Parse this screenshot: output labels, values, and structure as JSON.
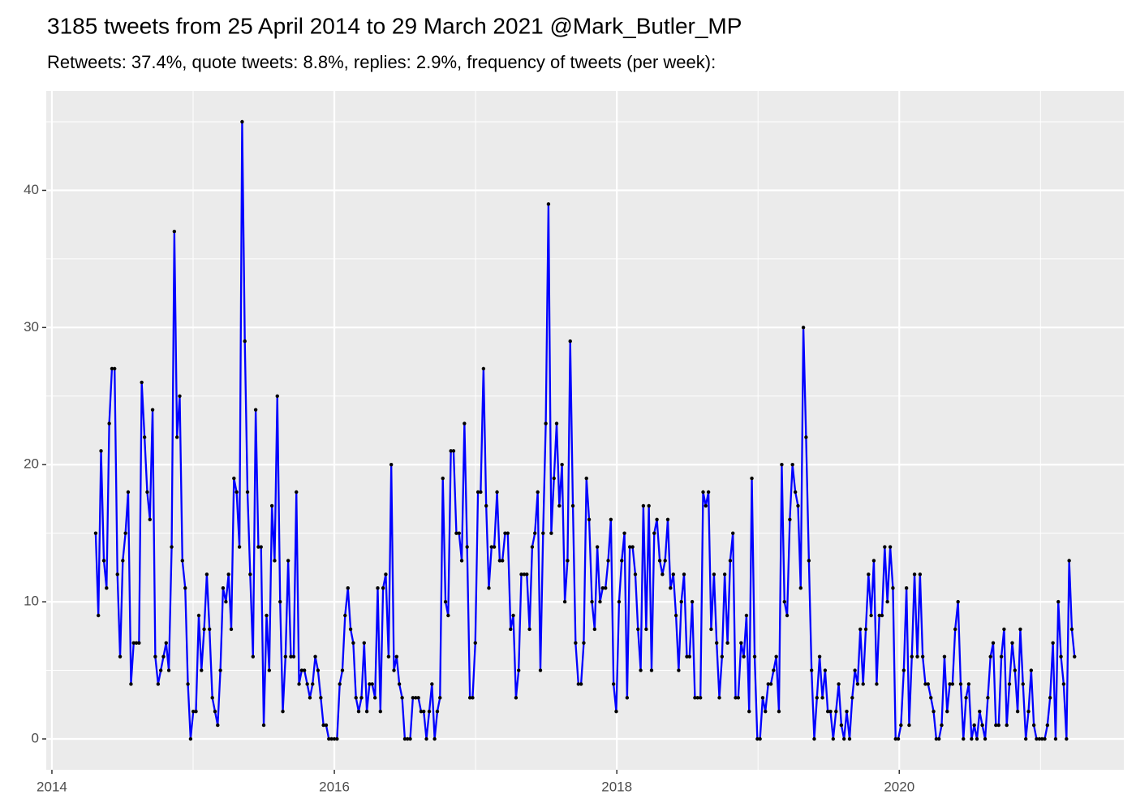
{
  "chart_data": {
    "type": "line",
    "title": "3185 tweets from 25 April 2014 to 29 March 2021 @Mark_Butler_MP",
    "subtitle": "Retweets: 37.4%, quote tweets: 8.8%, replies: 2.9%, frequency of tweets (per week):",
    "color": "#0000ff",
    "point_color": "#000000",
    "background": "#ebebeb",
    "grid": true,
    "minor_grid": true,
    "xlim": [
      2013.96,
      2021.59
    ],
    "xticks": [
      2014,
      2016,
      2018,
      2020
    ],
    "ylim": [
      -2.25,
      47.25
    ],
    "yticks": [
      0,
      10,
      20,
      30,
      40
    ],
    "x": [
      2014.31,
      2014.329,
      2014.348,
      2014.368,
      2014.387,
      2014.406,
      2014.425,
      2014.444,
      2014.464,
      2014.483,
      2014.502,
      2014.521,
      2014.54,
      2014.56,
      2014.579,
      2014.598,
      2014.617,
      2014.636,
      2014.656,
      2014.675,
      2014.694,
      2014.713,
      2014.732,
      2014.752,
      2014.771,
      2014.79,
      2014.809,
      2014.828,
      2014.848,
      2014.867,
      2014.886,
      2014.905,
      2014.924,
      2014.944,
      2014.963,
      2014.982,
      2015.001,
      2015.02,
      2015.04,
      2015.059,
      2015.078,
      2015.097,
      2015.116,
      2015.136,
      2015.155,
      2015.174,
      2015.193,
      2015.212,
      2015.232,
      2015.251,
      2015.27,
      2015.289,
      2015.308,
      2015.328,
      2015.347,
      2015.366,
      2015.385,
      2015.404,
      2015.424,
      2015.443,
      2015.462,
      2015.481,
      2015.5,
      2015.52,
      2015.539,
      2015.558,
      2015.577,
      2015.596,
      2015.616,
      2015.635,
      2015.654,
      2015.673,
      2015.692,
      2015.712,
      2015.731,
      2015.75,
      2015.769,
      2015.788,
      2015.808,
      2015.827,
      2015.846,
      2015.865,
      2015.884,
      2015.904,
      2015.923,
      2015.942,
      2015.961,
      2015.98,
      2016.0,
      2016.019,
      2016.038,
      2016.057,
      2016.076,
      2016.096,
      2016.115,
      2016.134,
      2016.153,
      2016.172,
      2016.192,
      2016.211,
      2016.23,
      2016.249,
      2016.268,
      2016.288,
      2016.307,
      2016.326,
      2016.345,
      2016.364,
      2016.384,
      2016.403,
      2016.422,
      2016.441,
      2016.46,
      2016.48,
      2016.499,
      2016.518,
      2016.537,
      2016.556,
      2016.576,
      2016.595,
      2016.614,
      2016.633,
      2016.652,
      2016.672,
      2016.691,
      2016.71,
      2016.729,
      2016.748,
      2016.768,
      2016.787,
      2016.806,
      2016.825,
      2016.844,
      2016.864,
      2016.883,
      2016.902,
      2016.921,
      2016.94,
      2016.96,
      2016.979,
      2016.998,
      2017.017,
      2017.036,
      2017.056,
      2017.075,
      2017.094,
      2017.113,
      2017.132,
      2017.152,
      2017.171,
      2017.19,
      2017.209,
      2017.228,
      2017.248,
      2017.267,
      2017.286,
      2017.305,
      2017.324,
      2017.344,
      2017.363,
      2017.382,
      2017.401,
      2017.42,
      2017.44,
      2017.459,
      2017.478,
      2017.497,
      2017.516,
      2017.536,
      2017.555,
      2017.574,
      2017.593,
      2017.612,
      2017.632,
      2017.651,
      2017.67,
      2017.689,
      2017.708,
      2017.728,
      2017.747,
      2017.766,
      2017.785,
      2017.804,
      2017.824,
      2017.843,
      2017.862,
      2017.881,
      2017.9,
      2017.92,
      2017.939,
      2017.958,
      2017.977,
      2017.996,
      2018.016,
      2018.035,
      2018.054,
      2018.073,
      2018.092,
      2018.112,
      2018.131,
      2018.15,
      2018.169,
      2018.188,
      2018.208,
      2018.227,
      2018.246,
      2018.265,
      2018.284,
      2018.304,
      2018.323,
      2018.342,
      2018.361,
      2018.38,
      2018.4,
      2018.419,
      2018.438,
      2018.457,
      2018.476,
      2018.496,
      2018.515,
      2018.534,
      2018.553,
      2018.572,
      2018.592,
      2018.611,
      2018.63,
      2018.649,
      2018.668,
      2018.688,
      2018.707,
      2018.726,
      2018.745,
      2018.764,
      2018.784,
      2018.803,
      2018.822,
      2018.841,
      2018.86,
      2018.88,
      2018.899,
      2018.918,
      2018.937,
      2018.956,
      2018.976,
      2018.995,
      2019.014,
      2019.033,
      2019.052,
      2019.072,
      2019.091,
      2019.11,
      2019.129,
      2019.148,
      2019.168,
      2019.187,
      2019.206,
      2019.225,
      2019.244,
      2019.264,
      2019.283,
      2019.302,
      2019.321,
      2019.34,
      2019.36,
      2019.379,
      2019.398,
      2019.417,
      2019.436,
      2019.456,
      2019.475,
      2019.494,
      2019.513,
      2019.532,
      2019.552,
      2019.571,
      2019.59,
      2019.609,
      2019.628,
      2019.648,
      2019.667,
      2019.686,
      2019.705,
      2019.724,
      2019.744,
      2019.763,
      2019.782,
      2019.801,
      2019.82,
      2019.84,
      2019.859,
      2019.878,
      2019.897,
      2019.916,
      2019.936,
      2019.955,
      2019.974,
      2019.993,
      2020.012,
      2020.032,
      2020.051,
      2020.07,
      2020.089,
      2020.108,
      2020.128,
      2020.147,
      2020.166,
      2020.185,
      2020.204,
      2020.224,
      2020.243,
      2020.262,
      2020.281,
      2020.3,
      2020.32,
      2020.339,
      2020.358,
      2020.377,
      2020.396,
      2020.416,
      2020.435,
      2020.454,
      2020.473,
      2020.492,
      2020.512,
      2020.531,
      2020.55,
      2020.569,
      2020.588,
      2020.608,
      2020.627,
      2020.646,
      2020.665,
      2020.684,
      2020.704,
      2020.723,
      2020.742,
      2020.761,
      2020.78,
      2020.8,
      2020.819,
      2020.838,
      2020.857,
      2020.876,
      2020.896,
      2020.915,
      2020.934,
      2020.953,
      2020.972,
      2020.992,
      2021.011,
      2021.03,
      2021.049,
      2021.068,
      2021.088,
      2021.107,
      2021.126,
      2021.145,
      2021.164,
      2021.184,
      2021.203,
      2021.222,
      2021.241
    ],
    "values": [
      15,
      9,
      21,
      13,
      11,
      23,
      27,
      27,
      12,
      6,
      13,
      15,
      18,
      4,
      7,
      7,
      7,
      26,
      22,
      18,
      16,
      24,
      6,
      4,
      5,
      6,
      7,
      5,
      14,
      37,
      22,
      25,
      13,
      11,
      4,
      0,
      2,
      2,
      9,
      5,
      8,
      12,
      8,
      3,
      2,
      1,
      5,
      11,
      10,
      12,
      8,
      19,
      18,
      14,
      45,
      29,
      18,
      12,
      6,
      24,
      14,
      14,
      1,
      9,
      5,
      17,
      13,
      25,
      10,
      2,
      6,
      13,
      6,
      6,
      18,
      4,
      5,
      5,
      4,
      3,
      4,
      6,
      5,
      3,
      1,
      1,
      0,
      0,
      0,
      0,
      4,
      5,
      9,
      11,
      8,
      7,
      3,
      2,
      3,
      7,
      2,
      4,
      4,
      3,
      11,
      2,
      11,
      12,
      6,
      20,
      5,
      6,
      4,
      3,
      0,
      0,
      0,
      3,
      3,
      3,
      2,
      2,
      0,
      2,
      4,
      0,
      2,
      3,
      19,
      10,
      9,
      21,
      21,
      15,
      15,
      13,
      23,
      14,
      3,
      3,
      7,
      18,
      18,
      27,
      17,
      11,
      14,
      14,
      18,
      13,
      13,
      15,
      15,
      8,
      9,
      3,
      5,
      12,
      12,
      12,
      8,
      14,
      15,
      18,
      5,
      15,
      23,
      39,
      15,
      19,
      23,
      17,
      20,
      10,
      13,
      29,
      17,
      7,
      4,
      4,
      7,
      19,
      16,
      10,
      8,
      14,
      10,
      11,
      11,
      13,
      16,
      4,
      2,
      10,
      13,
      15,
      3,
      14,
      14,
      12,
      8,
      5,
      17,
      8,
      17,
      5,
      15,
      16,
      13,
      12,
      13,
      16,
      11,
      12,
      9,
      5,
      10,
      12,
      6,
      6,
      10,
      3,
      3,
      3,
      18,
      17,
      18,
      8,
      12,
      7,
      3,
      6,
      12,
      7,
      13,
      15,
      3,
      3,
      7,
      6,
      9,
      2,
      19,
      6,
      0,
      0,
      3,
      2,
      4,
      4,
      5,
      6,
      2,
      20,
      10,
      9,
      16,
      20,
      18,
      17,
      11,
      30,
      22,
      13,
      5,
      0,
      3,
      6,
      3,
      5,
      2,
      2,
      0,
      2,
      4,
      1,
      0,
      2,
      0,
      3,
      5,
      4,
      8,
      4,
      8,
      12,
      9,
      13,
      4,
      9,
      9,
      14,
      10,
      14,
      11,
      0,
      0,
      1,
      5,
      11,
      1,
      6,
      12,
      6,
      12,
      6,
      4,
      4,
      3,
      2,
      0,
      0,
      1,
      6,
      2,
      4,
      4,
      8,
      10,
      4,
      0,
      3,
      4,
      0,
      1,
      0,
      2,
      1,
      0,
      3,
      6,
      7,
      1,
      1,
      6,
      8,
      1,
      4,
      7,
      5,
      2,
      8,
      4,
      0,
      2,
      5,
      1,
      0,
      0,
      0,
      0,
      1,
      3,
      7,
      0,
      10,
      6,
      4,
      0,
      13,
      8,
      6
    ]
  }
}
